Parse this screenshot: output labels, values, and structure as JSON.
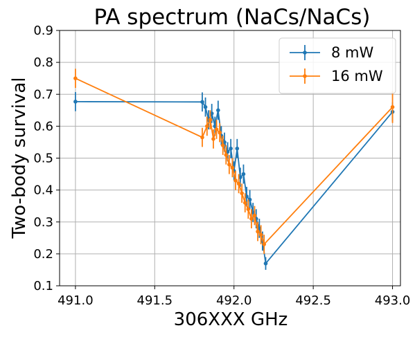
{
  "chart_data": {
    "type": "line",
    "title": "PA spectrum (NaCs/NaCs)",
    "xlabel": "306XXX GHz",
    "ylabel": "Two-body survival",
    "xlim": [
      490.9,
      493.05
    ],
    "ylim": [
      0.1,
      0.9
    ],
    "xticks": [
      491.0,
      491.5,
      492.0,
      492.5,
      493.0
    ],
    "xtick_labels": [
      "491.0",
      "491.5",
      "492.0",
      "492.5",
      "493.0"
    ],
    "yticks": [
      0.1,
      0.2,
      0.3,
      0.4,
      0.5,
      0.6,
      0.7,
      0.8,
      0.9
    ],
    "ytick_labels": [
      "0.1",
      "0.2",
      "0.3",
      "0.4",
      "0.5",
      "0.6",
      "0.7",
      "0.8",
      "0.9"
    ],
    "grid": true,
    "legend_position": "upper-right",
    "series": [
      {
        "name": "8 mW",
        "color": "#1f77b4",
        "x": [
          491.0,
          491.8,
          491.82,
          491.84,
          491.86,
          491.88,
          491.9,
          491.92,
          491.94,
          491.96,
          491.98,
          492.0,
          492.02,
          492.04,
          492.06,
          492.08,
          492.1,
          492.12,
          492.14,
          492.16,
          492.18,
          492.2,
          493.0
        ],
        "y": [
          0.677,
          0.676,
          0.66,
          0.62,
          0.64,
          0.6,
          0.65,
          0.57,
          0.55,
          0.52,
          0.53,
          0.46,
          0.53,
          0.44,
          0.45,
          0.38,
          0.37,
          0.33,
          0.31,
          0.28,
          0.24,
          0.17,
          0.645
        ],
        "err": [
          0.03,
          0.03,
          0.03,
          0.03,
          0.03,
          0.03,
          0.03,
          0.03,
          0.03,
          0.03,
          0.03,
          0.03,
          0.03,
          0.03,
          0.03,
          0.03,
          0.03,
          0.03,
          0.03,
          0.03,
          0.03,
          0.02,
          0.03
        ]
      },
      {
        "name": "16 mW",
        "color": "#ff7f0e",
        "x": [
          491.0,
          491.8,
          491.83,
          491.85,
          491.87,
          491.89,
          491.91,
          491.93,
          491.95,
          491.97,
          491.99,
          492.01,
          492.03,
          492.05,
          492.07,
          492.09,
          492.11,
          492.13,
          492.15,
          492.17,
          492.19,
          493.0
        ],
        "y": [
          0.75,
          0.565,
          0.6,
          0.62,
          0.56,
          0.59,
          0.58,
          0.54,
          0.51,
          0.48,
          0.47,
          0.43,
          0.42,
          0.39,
          0.36,
          0.34,
          0.31,
          0.32,
          0.27,
          0.26,
          0.23,
          0.66
        ],
        "err": [
          0.03,
          0.03,
          0.03,
          0.03,
          0.03,
          0.03,
          0.03,
          0.03,
          0.03,
          0.03,
          0.03,
          0.03,
          0.03,
          0.03,
          0.03,
          0.03,
          0.03,
          0.03,
          0.03,
          0.03,
          0.03,
          0.05
        ]
      }
    ]
  }
}
